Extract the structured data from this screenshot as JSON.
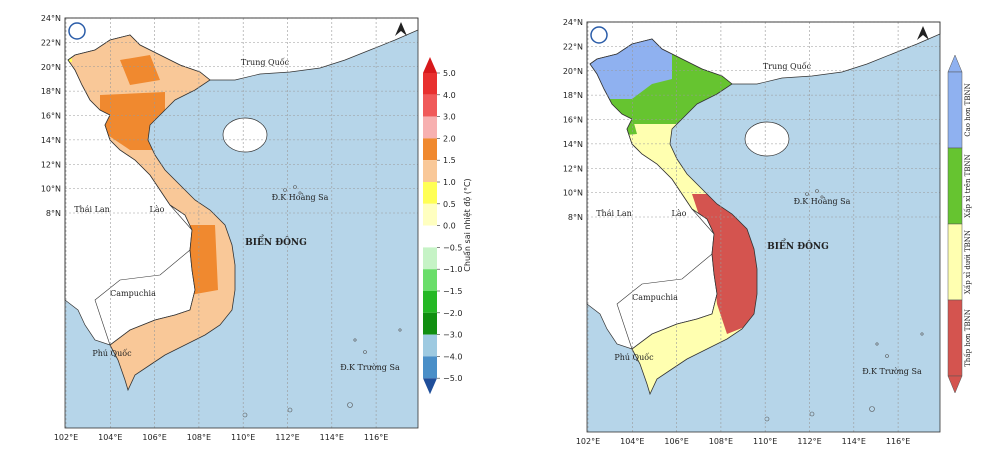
{
  "maps": [
    {
      "lat_ticks": [
        "24°N",
        "22°N",
        "20°N",
        "18°N",
        "16°N",
        "14°N",
        "12°N",
        "10°N",
        "8°N"
      ],
      "lon_ticks": [
        "102°E",
        "104°E",
        "106°E",
        "108°E",
        "110°E",
        "112°E",
        "114°E",
        "116°E"
      ],
      "places": {
        "china": "Trung Quốc",
        "thailand": "Thái Lan",
        "laos": "Lào",
        "cambodia": "Campuchia",
        "sea": "BIỂN ĐÔNG",
        "paracel": "Đ.K Hoàng Sa",
        "spratly": "Đ.K Trường Sa",
        "phuquoc": "Phú Quốc"
      },
      "colorbar": {
        "label": "Chuẩn sai nhiệt độ (°C)",
        "ticks": [
          "5.0",
          "4.0",
          "3.0",
          "2.0",
          "1.5",
          "1.0",
          "0.5",
          "0.0",
          "−0.5",
          "−1.0",
          "−1.5",
          "−2.0",
          "−3.0",
          "−4.0",
          "−5.0"
        ],
        "colors": [
          "#d7191c",
          "#e8302f",
          "#f05a5a",
          "#f7b0b0",
          "#f0892f",
          "#f9c898",
          "#ffff55",
          "#ffffc0",
          "#ffffff",
          "#c6f3c6",
          "#6ade6a",
          "#25b825",
          "#118f11",
          "#9ecae1",
          "#4a8fc8",
          "#1f4e9a"
        ]
      }
    },
    {
      "lat_ticks": [
        "24°N",
        "22°N",
        "20°N",
        "18°N",
        "16°N",
        "14°N",
        "12°N",
        "10°N",
        "8°N"
      ],
      "lon_ticks": [
        "102°E",
        "104°E",
        "106°E",
        "108°E",
        "110°E",
        "112°E",
        "114°E",
        "116°E"
      ],
      "places": {
        "china": "Trung Quốc",
        "thailand": "Thái Lan",
        "laos": "Lào",
        "cambodia": "Campuchia",
        "sea": "BIỂN ĐÔNG",
        "paracel": "Đ.K Hoàng Sa",
        "spratly": "Đ.K Trường Sa",
        "phuquoc": "Phú Quốc"
      },
      "legend": [
        {
          "label": "Cao hơn TBNN",
          "color": "#8fb1f0"
        },
        {
          "label": "Xấp xỉ trên TBNN",
          "color": "#66c430"
        },
        {
          "label": "Xấp xỉ dưới TBNN",
          "color": "#ffffb0"
        },
        {
          "label": "Thấp hơn TBNN",
          "color": "#d4544f"
        }
      ]
    }
  ]
}
